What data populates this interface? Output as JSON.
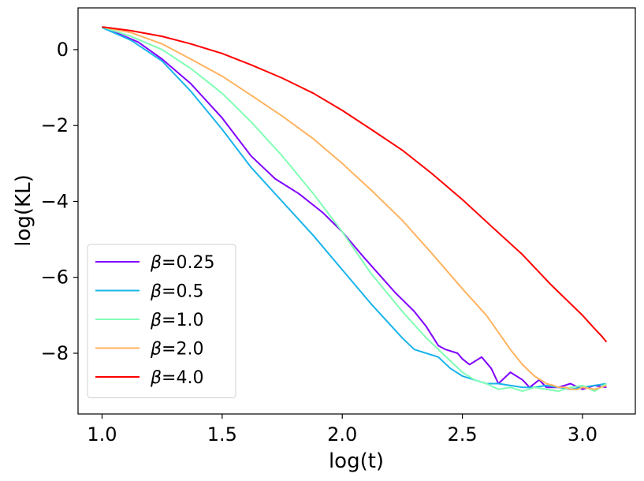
{
  "chart_data": {
    "type": "line",
    "title": "",
    "xlabel": "log(t)",
    "ylabel": "log(KL)",
    "xlim": [
      0.9,
      3.22
    ],
    "ylim": [
      -9.6,
      1.1
    ],
    "xticks": [
      1.0,
      1.5,
      2.0,
      2.5,
      3.0
    ],
    "xtick_labels": [
      "1.0",
      "1.5",
      "2.0",
      "2.5",
      "3.0"
    ],
    "yticks": [
      0,
      -2,
      -4,
      -6,
      -8
    ],
    "ytick_labels": [
      "0",
      "−2",
      "−4",
      "−6",
      "−8"
    ],
    "grid": false,
    "legend_position": "lower-left",
    "series": [
      {
        "name": "β=0.25",
        "legend_symbol": "β",
        "legend_value": "=0.25",
        "color": "#8000ff",
        "x": [
          1.0,
          1.15,
          1.25,
          1.37,
          1.5,
          1.62,
          1.72,
          1.82,
          1.92,
          2.0,
          2.08,
          2.15,
          2.22,
          2.3,
          2.35,
          2.38,
          2.4,
          2.43,
          2.48,
          2.5,
          2.53,
          2.58,
          2.62,
          2.65,
          2.7,
          2.75,
          2.78,
          2.82,
          2.85,
          2.9,
          2.95,
          3.0,
          3.05,
          3.1
        ],
        "y": [
          0.6,
          0.2,
          -0.25,
          -0.9,
          -1.8,
          -2.8,
          -3.4,
          -3.8,
          -4.3,
          -4.8,
          -5.4,
          -5.9,
          -6.4,
          -6.9,
          -7.3,
          -7.6,
          -7.8,
          -7.9,
          -8.0,
          -8.15,
          -8.3,
          -8.1,
          -8.4,
          -8.8,
          -8.5,
          -8.7,
          -8.9,
          -8.7,
          -8.9,
          -8.9,
          -8.8,
          -8.95,
          -8.85,
          -8.9
        ]
      },
      {
        "name": "β=0.5",
        "legend_symbol": "β",
        "legend_value": "=0.5",
        "color": "#19b4eb",
        "x": [
          1.0,
          1.12,
          1.25,
          1.37,
          1.5,
          1.62,
          1.75,
          1.88,
          2.0,
          2.12,
          2.25,
          2.3,
          2.35,
          2.4,
          2.45,
          2.5,
          2.55,
          2.6,
          2.65,
          2.7,
          2.75,
          2.8,
          2.85,
          2.9,
          2.95,
          3.0,
          3.05,
          3.1
        ],
        "y": [
          0.58,
          0.25,
          -0.3,
          -1.1,
          -2.1,
          -3.1,
          -4.0,
          -4.9,
          -5.8,
          -6.7,
          -7.6,
          -7.9,
          -8.0,
          -8.1,
          -8.4,
          -8.6,
          -8.7,
          -8.8,
          -8.8,
          -8.85,
          -8.9,
          -8.9,
          -8.85,
          -8.9,
          -8.95,
          -8.9,
          -8.85,
          -8.8
        ]
      },
      {
        "name": "β=1.0",
        "legend_symbol": "β",
        "legend_value": "=1.0",
        "color": "#80ffb4",
        "x": [
          1.0,
          1.12,
          1.25,
          1.37,
          1.5,
          1.62,
          1.75,
          1.88,
          2.0,
          2.12,
          2.25,
          2.35,
          2.45,
          2.5,
          2.55,
          2.6,
          2.65,
          2.7,
          2.75,
          2.8,
          2.85,
          2.9,
          2.95,
          3.0,
          3.05,
          3.1
        ],
        "y": [
          0.6,
          0.35,
          0.0,
          -0.5,
          -1.15,
          -1.9,
          -2.8,
          -3.8,
          -4.8,
          -5.9,
          -6.9,
          -7.6,
          -8.2,
          -8.5,
          -8.7,
          -8.8,
          -8.95,
          -8.9,
          -9.0,
          -8.9,
          -8.95,
          -9.0,
          -8.9,
          -8.85,
          -9.0,
          -8.8
        ]
      },
      {
        "name": "β=2.0",
        "legend_symbol": "β",
        "legend_value": "=2.0",
        "color": "#ffb360",
        "x": [
          1.0,
          1.12,
          1.25,
          1.37,
          1.5,
          1.62,
          1.75,
          1.88,
          2.0,
          2.12,
          2.25,
          2.37,
          2.5,
          2.6,
          2.7,
          2.75,
          2.8,
          2.85,
          2.88,
          2.9,
          2.93,
          2.95,
          2.98,
          3.0,
          3.05,
          3.1
        ],
        "y": [
          0.6,
          0.45,
          0.15,
          -0.25,
          -0.7,
          -1.2,
          -1.75,
          -2.35,
          -3.0,
          -3.7,
          -4.5,
          -5.35,
          -6.3,
          -7.0,
          -7.9,
          -8.3,
          -8.6,
          -8.8,
          -8.85,
          -8.9,
          -8.9,
          -8.95,
          -8.95,
          -8.9,
          -8.95,
          -8.85
        ]
      },
      {
        "name": "β=4.0",
        "legend_symbol": "β",
        "legend_value": "=4.0",
        "color": "#ff0000",
        "x": [
          1.0,
          1.12,
          1.25,
          1.37,
          1.5,
          1.62,
          1.75,
          1.88,
          2.0,
          2.12,
          2.25,
          2.37,
          2.5,
          2.62,
          2.75,
          2.87,
          3.0,
          3.05,
          3.08,
          3.1
        ],
        "y": [
          0.6,
          0.5,
          0.35,
          0.15,
          -0.1,
          -0.4,
          -0.75,
          -1.15,
          -1.6,
          -2.1,
          -2.65,
          -3.25,
          -3.95,
          -4.65,
          -5.4,
          -6.2,
          -7.0,
          -7.35,
          -7.55,
          -7.7
        ]
      }
    ]
  }
}
